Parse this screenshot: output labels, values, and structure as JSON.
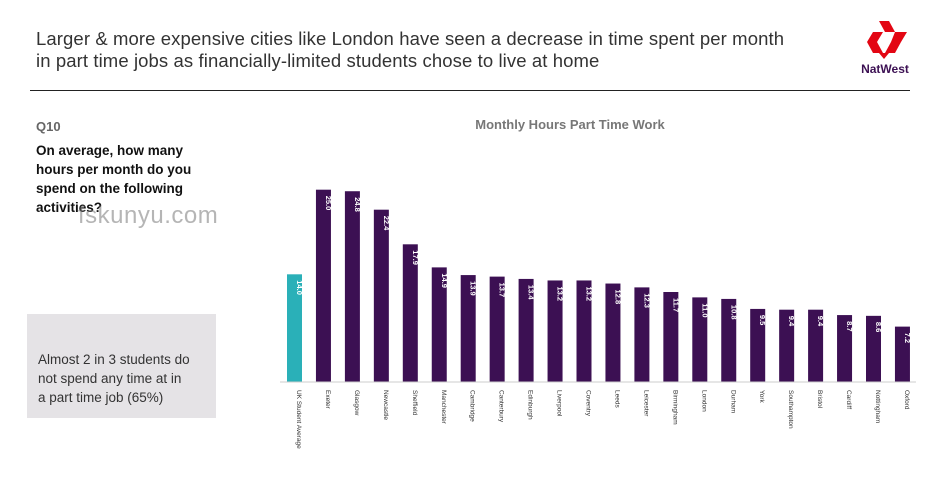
{
  "header": {
    "title_line1": "Larger & more expensive cities like London have seen a decrease in time spent per month",
    "title_line2": "in part time jobs as financially-limited students chose to live at home"
  },
  "logo": {
    "brand": "NatWest",
    "icon": "natwest-logo-icon"
  },
  "question": {
    "number": "Q10",
    "line1": "On average, how many",
    "line2": "hours per month do you",
    "line3": "spend on the following",
    "line4": "activities?"
  },
  "watermark": "fskunyu.com",
  "callout": {
    "line1": "Almost 2 in 3 students do",
    "line2": "not spend any time at in",
    "line3": "a part time job (65%)"
  },
  "colors": {
    "average_bar": "#2ab0b8",
    "city_bar": "#3c1053",
    "label": "#ffffff"
  },
  "chart_data": {
    "type": "bar",
    "title": "Monthly Hours Part Time Work",
    "xlabel": "",
    "ylabel": "",
    "ylim": [
      0,
      26
    ],
    "grid": false,
    "categories": [
      "UK Student Average",
      "Exeter",
      "Glasgow",
      "Newcastle",
      "Sheffield",
      "Manchester",
      "Cambridge",
      "Canterbury",
      "Edinburgh",
      "Liverpool",
      "Coventry",
      "Leeds",
      "Leicester",
      "Birmingham",
      "London",
      "Durham",
      "York",
      "Southampton",
      "Bristol",
      "Cardiff",
      "Nottingham",
      "Oxford"
    ],
    "values": [
      14.0,
      25.0,
      24.8,
      22.4,
      17.9,
      14.9,
      13.9,
      13.7,
      13.4,
      13.2,
      13.2,
      12.8,
      12.3,
      11.7,
      11.0,
      10.8,
      9.5,
      9.4,
      9.4,
      8.7,
      8.6,
      7.2
    ],
    "value_labels": [
      "14.0",
      "25.0",
      "24.8",
      "22.4",
      "17.9",
      "14.9",
      "13.9",
      "13.7",
      "13.4",
      "13.2",
      "13.2",
      "12.8",
      "12.3",
      "11.7",
      "11.0",
      "10.8",
      "9.5",
      "9.4",
      "9.4",
      "8.7",
      "8.6",
      "7.2"
    ]
  }
}
